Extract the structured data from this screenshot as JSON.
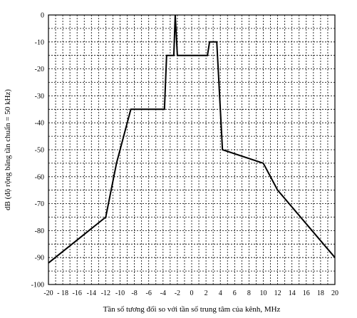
{
  "chart_data": {
    "type": "line",
    "title": "",
    "xlabel": "Tần số tương đối so với tần số trung tâm của kênh, MHz",
    "ylabel": "dB (độ rộng băng tần chuẩn = 50 kHz)",
    "xlim": [
      -20,
      20
    ],
    "ylim": [
      -100,
      0
    ],
    "x_ticks": [
      -20,
      -18,
      -16,
      -14,
      -12,
      -10,
      -8,
      -6,
      -4,
      -2,
      0,
      2,
      4,
      6,
      8,
      10,
      12,
      14,
      16,
      18,
      20
    ],
    "y_ticks": [
      0,
      -10,
      -20,
      -30,
      -40,
      -50,
      -60,
      -70,
      -80,
      -90,
      -100
    ],
    "x_tick_labels": [
      "-20",
      "- 18",
      "-16",
      "-14",
      "-12",
      "-10",
      "-8",
      "-6",
      "-4",
      "-2",
      "0",
      "2",
      "4",
      "6",
      "8",
      "10",
      "12",
      "14",
      "16",
      "18",
      "20"
    ],
    "y_tick_labels": [
      "0",
      "-10",
      "-20",
      "-30",
      "-40",
      "-50",
      "-60",
      "-70",
      "-80",
      "-90",
      "-100"
    ],
    "grid": true,
    "grid_style": "dashed",
    "series": [
      {
        "color": "#000000",
        "x": [
          -20,
          -12,
          -10.5,
          -8.5,
          -3.8,
          -3.5,
          -2.5,
          -2.3,
          -2,
          -1.8,
          2.2,
          2.5,
          3.5,
          4.3,
          10,
          12,
          20
        ],
        "y": [
          -92,
          -75,
          -55,
          -35,
          -35,
          -15,
          -15,
          0,
          -15,
          -15,
          -15,
          -10,
          -10,
          -50,
          -55,
          -65,
          -90
        ]
      }
    ]
  }
}
